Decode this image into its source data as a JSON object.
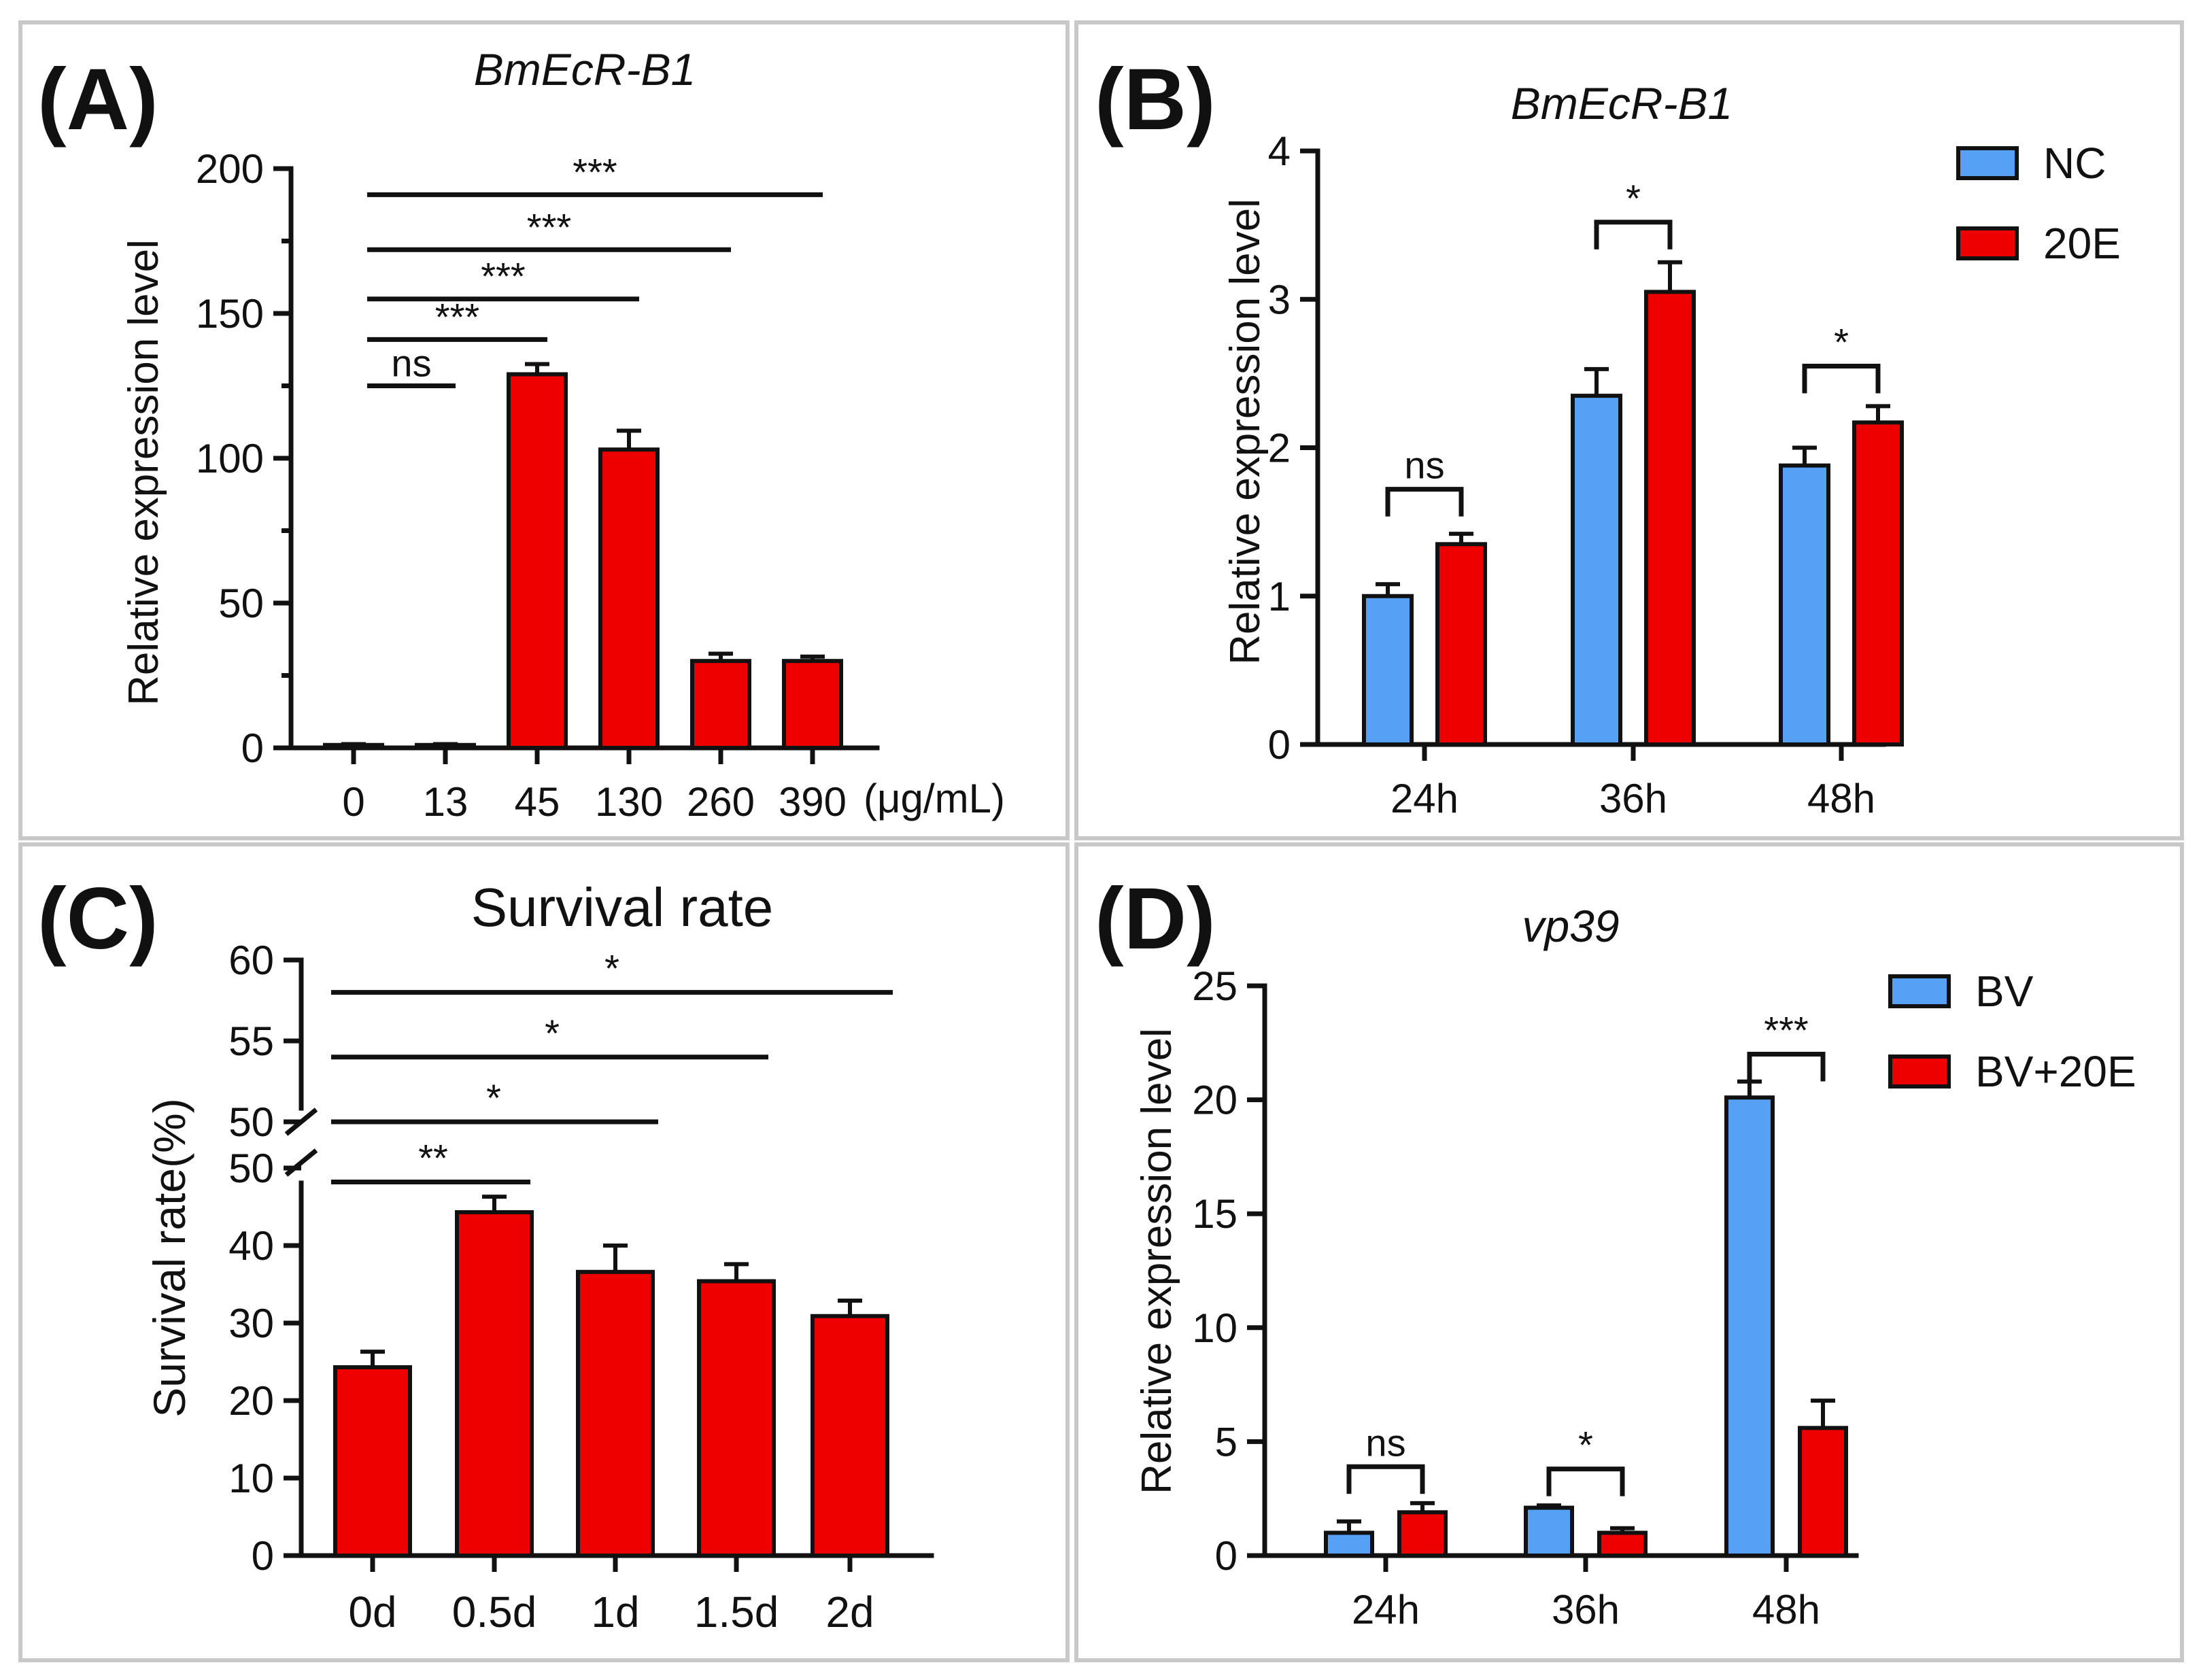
{
  "chart_data": [
    {
      "panel": "(A)",
      "type": "bar",
      "title": "BmEcR-B1",
      "title_style": "italic",
      "ylabel": "Relative expression level",
      "xunit": "(μg/mL)",
      "ylim": [
        0,
        200
      ],
      "yticks": [
        "0",
        "50",
        "100",
        "150",
        "200"
      ],
      "categories": [
        "0",
        "13",
        "45",
        "130",
        "260",
        "390"
      ],
      "series": [
        {
          "name": "",
          "color": "#ee0000",
          "values": [
            1,
            1,
            129,
            103,
            30,
            30
          ],
          "errors": [
            0.3,
            0.3,
            3.5,
            6.5,
            2.5,
            1.5
          ]
        }
      ],
      "significance": [
        {
          "from": 0,
          "to": 1,
          "label": "ns",
          "y": 125
        },
        {
          "from": 0,
          "to": 2,
          "label": "***",
          "y": 141
        },
        {
          "from": 0,
          "to": 3,
          "label": "***",
          "y": 155
        },
        {
          "from": 0,
          "to": 4,
          "label": "***",
          "y": 172
        },
        {
          "from": 0,
          "to": 5,
          "label": "***",
          "y": 191
        }
      ]
    },
    {
      "panel": "(B)",
      "type": "bar",
      "title": "BmEcR-B1",
      "title_style": "italic",
      "ylabel": "Relative expression level",
      "ylim": [
        0,
        4
      ],
      "yticks": [
        "0",
        "1",
        "2",
        "3",
        "4"
      ],
      "categories": [
        "24h",
        "36h",
        "48h"
      ],
      "series": [
        {
          "name": "NC",
          "color": "#56a0f5",
          "values": [
            1.0,
            2.35,
            1.88
          ],
          "errors": [
            0.08,
            0.18,
            0.12
          ]
        },
        {
          "name": "20E",
          "color": "#ee0000",
          "values": [
            1.35,
            3.05,
            2.17
          ],
          "errors": [
            0.07,
            0.2,
            0.11
          ]
        }
      ],
      "significance": [
        {
          "category": 0,
          "label": "ns",
          "y": 1.72
        },
        {
          "category": 1,
          "label": "*",
          "y": 3.52
        },
        {
          "category": 2,
          "label": "*",
          "y": 2.55
        }
      ]
    },
    {
      "panel": "(C)",
      "type": "bar",
      "title": "Survival rate",
      "title_style": "normal",
      "ylabel": "Survival rate(%)",
      "ylim": [
        0,
        60
      ],
      "axis_break": {
        "lower": [
          0,
          50
        ],
        "upper": [
          50,
          60
        ]
      },
      "yticks_lower": [
        "0",
        "10",
        "20",
        "30",
        "40",
        "50"
      ],
      "yticks_upper": [
        "50",
        "55",
        "60"
      ],
      "categories": [
        "0d",
        "0.5d",
        "1d",
        "1.5d",
        "2d"
      ],
      "series": [
        {
          "name": "",
          "color": "#ee0000",
          "values": [
            24.3,
            44.3,
            36.6,
            35.4,
            30.9
          ],
          "errors": [
            2.0,
            2.0,
            3.4,
            2.2,
            2.0
          ]
        }
      ],
      "significance": [
        {
          "from": 0,
          "to": 1,
          "label": "**",
          "y": 48.2,
          "segment": "lower"
        },
        {
          "from": 0,
          "to": 2,
          "label": "*",
          "y": 50,
          "segment": "upper"
        },
        {
          "from": 0,
          "to": 3,
          "label": "*",
          "y": 54,
          "segment": "upper"
        },
        {
          "from": 0,
          "to": 4,
          "label": "*",
          "y": 58,
          "segment": "upper"
        }
      ]
    },
    {
      "panel": "(D)",
      "type": "bar",
      "title": "vp39",
      "title_style": "italic",
      "ylabel": "Relative expression level",
      "ylim": [
        0,
        25
      ],
      "yticks": [
        "0",
        "5",
        "10",
        "15",
        "20",
        "25"
      ],
      "categories": [
        "24h",
        "36h",
        "48h"
      ],
      "series": [
        {
          "name": "BV",
          "color": "#56a0f5",
          "values": [
            1.0,
            2.1,
            20.1
          ],
          "errors": [
            0.5,
            0.1,
            0.7
          ]
        },
        {
          "name": "BV+20E",
          "color": "#ee0000",
          "values": [
            1.9,
            1.0,
            5.6
          ],
          "errors": [
            0.4,
            0.2,
            1.2
          ]
        }
      ],
      "significance": [
        {
          "category": 0,
          "label": "ns",
          "y": 3.9
        },
        {
          "category": 1,
          "label": "*",
          "y": 3.8
        },
        {
          "category": 2,
          "label": "***",
          "y": 22.0
        }
      ]
    }
  ]
}
